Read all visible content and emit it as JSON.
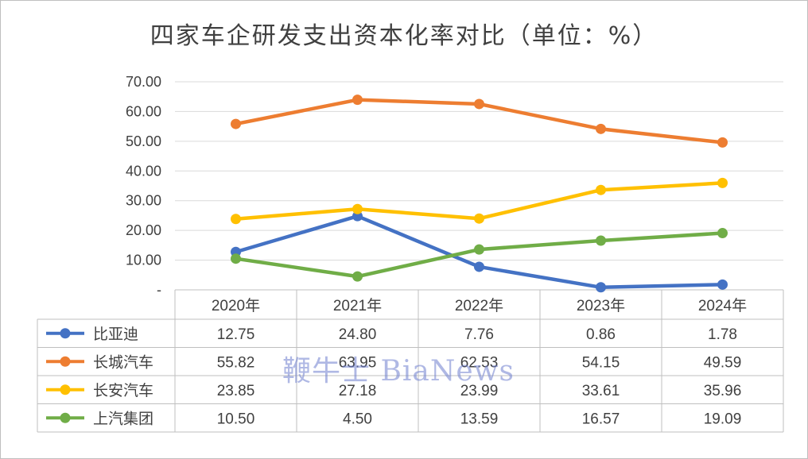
{
  "chart_data": {
    "type": "line",
    "title": "四家车企研发支出资本化率对比（单位：%）",
    "categories": [
      "2020年",
      "2021年",
      "2022年",
      "2023年",
      "2024年"
    ],
    "ylim": [
      0,
      70
    ],
    "y_ticks": [
      "-",
      "10.00",
      "20.00",
      "30.00",
      "40.00",
      "50.00",
      "60.00",
      "70.00"
    ],
    "grid": true,
    "legend": "data-table",
    "series": [
      {
        "name": "比亚迪",
        "color": "#4472c4",
        "values": [
          12.75,
          24.8,
          7.76,
          0.86,
          1.78
        ],
        "labels": [
          "12.75",
          "24.80",
          "7.76",
          "0.86",
          "1.78"
        ]
      },
      {
        "name": "长城汽车",
        "color": "#ed7d31",
        "values": [
          55.82,
          63.95,
          62.53,
          54.15,
          49.59
        ],
        "labels": [
          "55.82",
          "63.95",
          "62.53",
          "54.15",
          "49.59"
        ]
      },
      {
        "name": "长安汽车",
        "color": "#ffc000",
        "values": [
          23.85,
          27.18,
          23.99,
          33.61,
          35.96
        ],
        "labels": [
          "23.85",
          "27.18",
          "23.99",
          "33.61",
          "35.96"
        ]
      },
      {
        "name": "上汽集团",
        "color": "#70ad47",
        "values": [
          10.5,
          4.5,
          13.59,
          16.57,
          19.09
        ],
        "labels": [
          "10.50",
          "4.50",
          "13.59",
          "16.57",
          "19.09"
        ]
      }
    ]
  },
  "watermark": "鞭牛士 BiaNews"
}
